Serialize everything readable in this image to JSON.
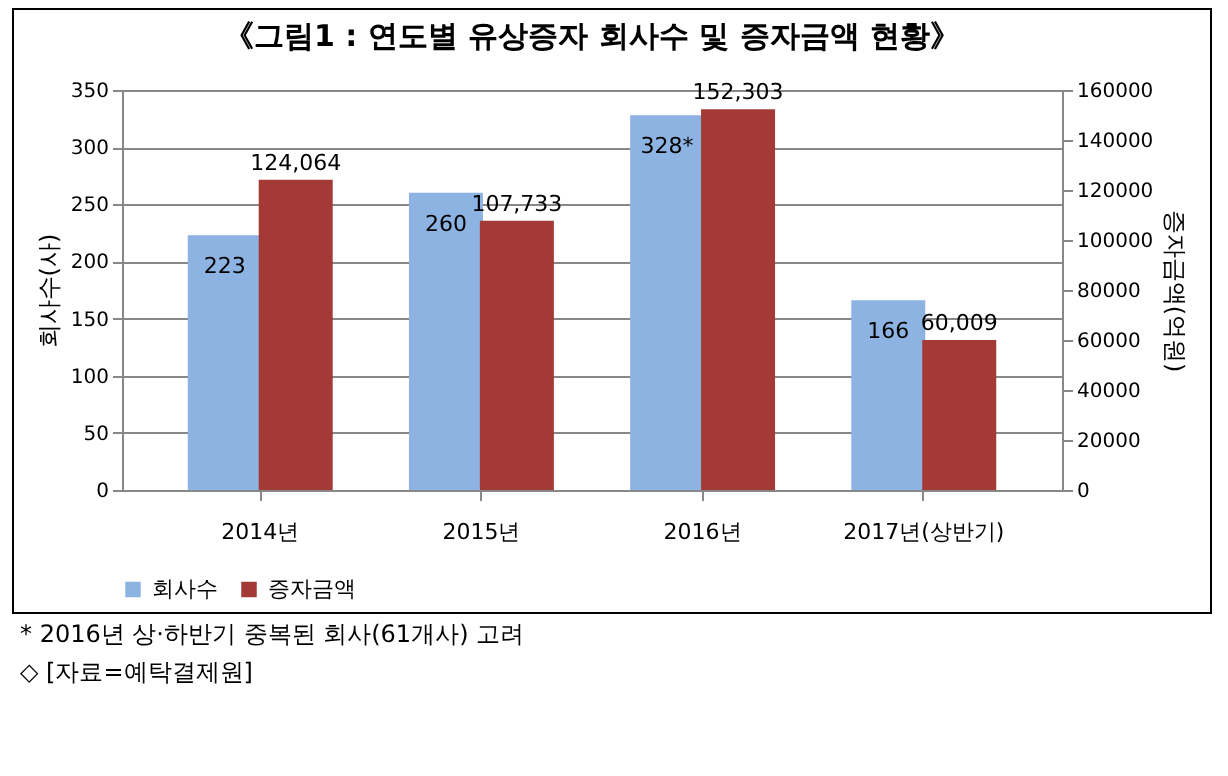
{
  "chart_data": {
    "type": "bar",
    "title": "《그림1 : 연도별 유상증자 회사수 및 증자금액 현황》",
    "categories": [
      "2014년",
      "2015년",
      "2016년",
      "2017년(상반기)"
    ],
    "series": [
      {
        "name": "회사수",
        "color": "#8db3e2",
        "values": [
          223,
          260,
          328,
          166
        ],
        "value_labels": [
          "223",
          "260",
          "328*",
          "166"
        ]
      },
      {
        "name": "증자금액",
        "color": "#a33a36",
        "axis": "y2",
        "values": [
          124064,
          107733,
          152303,
          60009
        ],
        "value_labels": [
          "124,064",
          "107,733",
          "152,303",
          "60,009"
        ]
      }
    ],
    "ylabel": "회사수(사)",
    "y2label": "증자금액(억원)",
    "ylim": [
      0,
      350
    ],
    "yticks": [
      0,
      50,
      100,
      150,
      200,
      250,
      300,
      350
    ],
    "y2lim": [
      0,
      160000
    ],
    "y2ticks": [
      0,
      20000,
      40000,
      60000,
      80000,
      100000,
      120000,
      140000,
      160000
    ],
    "grid": "y",
    "legend": "bottom",
    "annotations": [
      "* 2016년 상·하반기 중복된 회사(61개사) 고려",
      "◇ [자료=예탁결제원]"
    ]
  }
}
